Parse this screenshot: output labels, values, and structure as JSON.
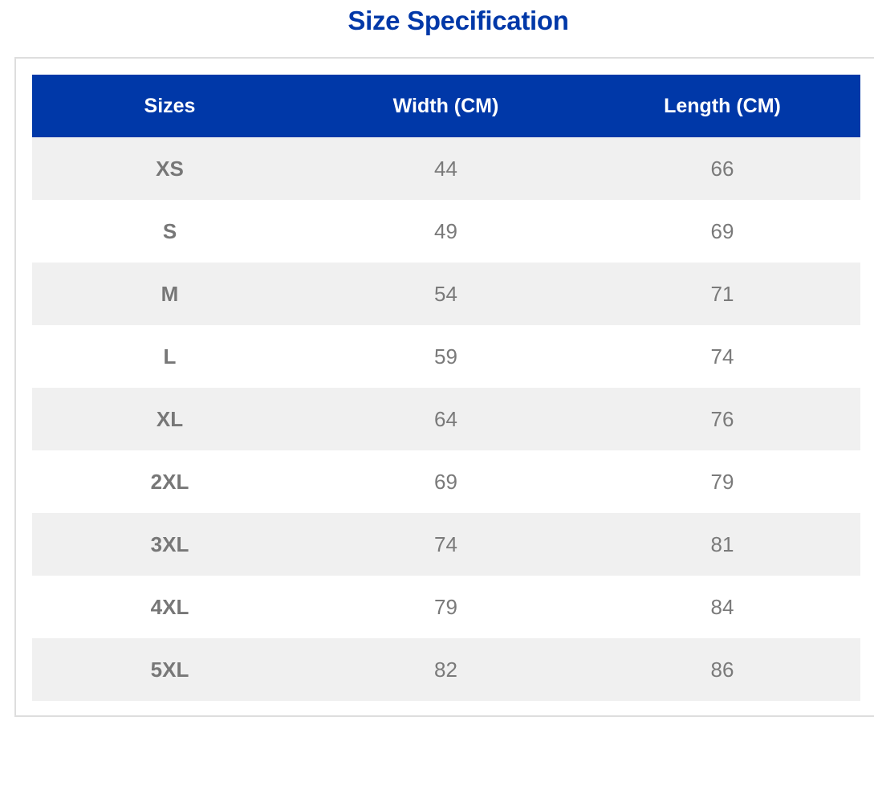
{
  "page": {
    "title": "Size Specification"
  },
  "table": {
    "headers": [
      "Sizes",
      "Width (CM)",
      "Length (CM)"
    ],
    "rows": [
      {
        "size": "XS",
        "width": "44",
        "length": "66"
      },
      {
        "size": "S",
        "width": "49",
        "length": "69"
      },
      {
        "size": "M",
        "width": "54",
        "length": "71"
      },
      {
        "size": "L",
        "width": "59",
        "length": "74"
      },
      {
        "size": "XL",
        "width": "64",
        "length": "76"
      },
      {
        "size": "2XL",
        "width": "69",
        "length": "79"
      },
      {
        "size": "3XL",
        "width": "74",
        "length": "81"
      },
      {
        "size": "4XL",
        "width": "79",
        "length": "84"
      },
      {
        "size": "5XL",
        "width": "82",
        "length": "86"
      }
    ]
  },
  "colors": {
    "accent": "#0038A8",
    "header_text": "#FFFFFF",
    "stripe": "#F0F0F0",
    "cell_text": "#7A7A7A",
    "frame_border": "#DEDEDE"
  }
}
